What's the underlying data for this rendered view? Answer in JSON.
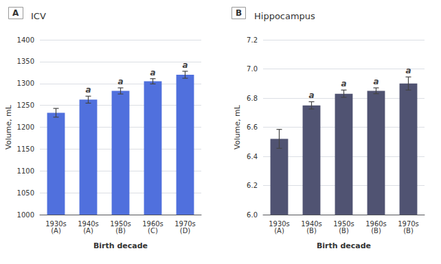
{
  "chart_data": [
    {
      "type": "bar",
      "label": "A",
      "title": "ICV",
      "categories": [
        "1930s\n(A)",
        "1940s\n(A)",
        "1950s\n(B)",
        "1960s\n(C)",
        "1970s\n(D)"
      ],
      "values": [
        1233,
        1263,
        1283,
        1305,
        1320
      ],
      "errors": [
        10,
        8,
        7,
        6,
        8
      ],
      "annotations": [
        null,
        "a",
        "a",
        "a",
        "a"
      ],
      "ylim": [
        1000,
        1400
      ],
      "yticks": [
        1000,
        1050,
        1100,
        1150,
        1200,
        1250,
        1300,
        1350,
        1400
      ],
      "ylabel": "Volume, mL",
      "xlabel": "Birth decade",
      "grid": true
    },
    {
      "type": "bar",
      "label": "B",
      "title": "Hippocampus",
      "categories": [
        "1930s\n(A)",
        "1940s\n(B)",
        "1950s\n(B)",
        "1960s\n(B)",
        "1970s\n(B)"
      ],
      "values": [
        6.52,
        6.75,
        6.83,
        6.85,
        6.9
      ],
      "errors": [
        0.065,
        0.025,
        0.025,
        0.02,
        0.045
      ],
      "annotations": [
        null,
        "a",
        "a",
        "a",
        "a"
      ],
      "ylim": [
        6.0,
        7.2
      ],
      "yticks": [
        {
          "value": 6.0,
          "label": "6.0"
        },
        6.2,
        6.4,
        6.6,
        6.8,
        {
          "value": 7.0,
          "label": "7.0"
        },
        7.2
      ],
      "ylabel": "Volume, mL",
      "xlabel": "Birth decade",
      "grid": true
    }
  ]
}
